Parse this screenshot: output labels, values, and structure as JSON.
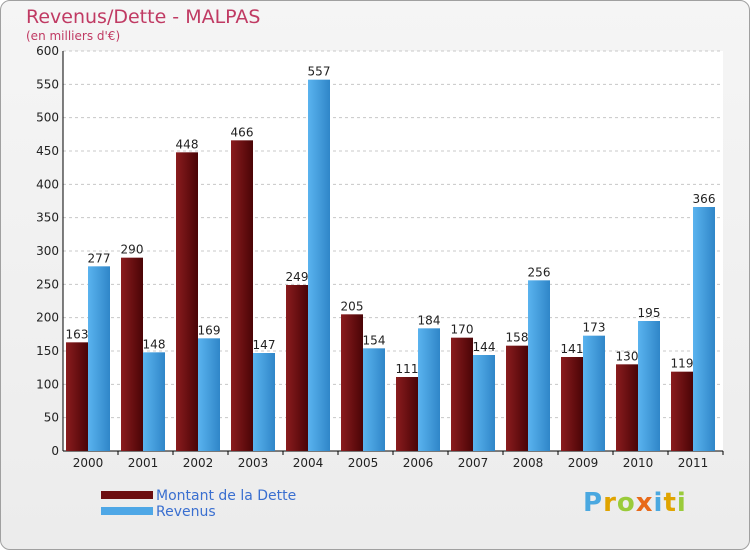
{
  "header": {
    "title": "Revenus/Dette - MALPAS",
    "subtitle": "(en milliers d'€)"
  },
  "legend": {
    "items": [
      {
        "label": "Montant de la Dette",
        "color": "#6d0e10"
      },
      {
        "label": "Revenus",
        "color": "#4ea7e6"
      }
    ]
  },
  "logo": {
    "letters": [
      "P",
      "r",
      "o",
      "x",
      "i",
      "t",
      "i"
    ],
    "colors": [
      "#4aa8e0",
      "#e0a400",
      "#9acb3a",
      "#e86a1a",
      "#4aa8e0",
      "#e0a400",
      "#9acb3a"
    ]
  },
  "chart_data": {
    "type": "bar",
    "categories": [
      "2000",
      "2001",
      "2002",
      "2003",
      "2004",
      "2005",
      "2006",
      "2007",
      "2008",
      "2009",
      "2010",
      "2011"
    ],
    "series": [
      {
        "name": "Montant de la Dette",
        "color": "#6d0e10",
        "values": [
          163,
          290,
          448,
          466,
          249,
          205,
          111,
          170,
          158,
          141,
          130,
          119
        ]
      },
      {
        "name": "Revenus",
        "color": "#4ea7e6",
        "values": [
          277,
          148,
          169,
          147,
          557,
          154,
          184,
          144,
          256,
          173,
          195,
          366
        ]
      }
    ],
    "ylim": [
      0,
      600
    ],
    "yticks": [
      0,
      50,
      100,
      150,
      200,
      250,
      300,
      350,
      400,
      450,
      500,
      550,
      600
    ],
    "grid": true
  }
}
